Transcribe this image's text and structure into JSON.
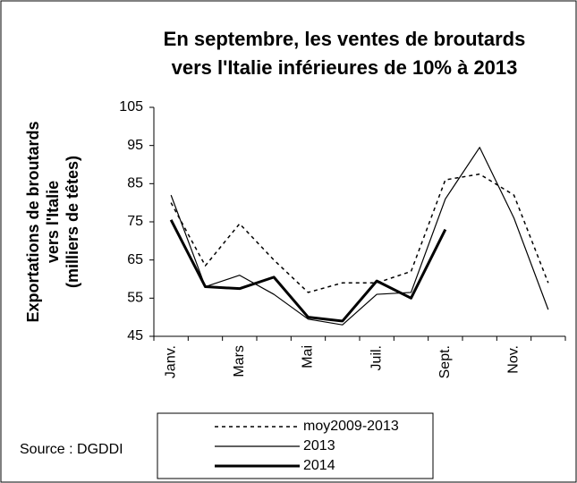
{
  "chart_data": {
    "type": "line",
    "title": [
      "En septembre, les ventes de broutards",
      "vers l'Italie inférieures de 10% à 2013"
    ],
    "y_label": [
      "Exportations de broutards",
      "vers l'Italie",
      "(milliers de têtes)"
    ],
    "source": "Source : DGDDI",
    "categories": [
      "Janv.",
      null,
      "Mars",
      null,
      "Mai",
      null,
      "Juil.",
      null,
      "Sept.",
      null,
      "Nov.",
      null
    ],
    "series": [
      {
        "name": "moy2009-2013",
        "color": "#000000",
        "dash": true,
        "width": 1.5,
        "values": [
          80,
          63.5,
          74.5,
          65,
          56.5,
          59,
          59,
          62,
          86,
          87.5,
          82,
          59
        ]
      },
      {
        "name": "2013",
        "color": "#000000",
        "dash": false,
        "width": 1.2,
        "values": [
          82,
          58,
          61,
          56,
          49.5,
          48,
          56,
          56.5,
          81,
          94.5,
          76,
          52
        ]
      },
      {
        "name": "2014",
        "color": "#000000",
        "dash": false,
        "width": 3,
        "values": [
          75.5,
          58,
          57.5,
          60.5,
          50,
          49,
          59.5,
          55,
          73,
          null,
          null,
          null
        ]
      }
    ],
    "ylim": [
      45,
      105
    ],
    "yticks": [
      45,
      55,
      65,
      75,
      85,
      95,
      105
    ],
    "grid": false
  }
}
